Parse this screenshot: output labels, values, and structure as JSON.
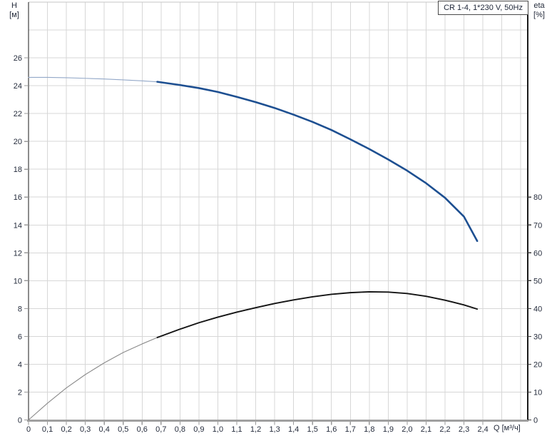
{
  "title_box": {
    "text": "CR 1-4, 1*230 V, 50Hz"
  },
  "corner_labels": {
    "left_axis_title": "H",
    "left_axis_unit": "[м]",
    "right_axis_title": "eta",
    "right_axis_unit": "[%]",
    "x_axis_title": "Q [м³/ч]"
  },
  "colors": {
    "background": "#ffffff",
    "grid": "#d7d7d7",
    "plot_border_top": "#c4c4c4",
    "axis_left": "#1a1a1a",
    "axis_right": "#1a1a1a",
    "axis_bottom": "#a0a0a0",
    "tick_left_bottom": "#9a9a9a",
    "tick_right": "#3a3a3a",
    "tick_text": "#252c3c",
    "head_curve_main": "#1d4f91",
    "head_curve_thin": "#93a8c8",
    "eta_curve_main": "#141414",
    "eta_curve_thin": "#8a8a8a"
  },
  "chart_data": {
    "type": "line",
    "title": "CR 1-4, 1*230 V, 50Hz",
    "grid": true,
    "legend_position": "none",
    "x_axis": {
      "label": "Q [м³/ч]",
      "min": 0,
      "max": 2.637,
      "gridline_step": 0.1,
      "decimal_separator": ",",
      "tick_values": [
        0,
        0.1,
        0.2,
        0.3,
        0.4,
        0.5,
        0.6,
        0.7,
        0.8,
        0.9,
        1.0,
        1.1,
        1.2,
        1.3,
        1.4,
        1.5,
        1.6,
        1.7,
        1.8,
        1.9,
        2.0,
        2.1,
        2.2,
        2.3,
        2.4
      ],
      "tick_labels": [
        "0",
        "0,1",
        "0,2",
        "0,3",
        "0,4",
        "0,5",
        "0,6",
        "0,7",
        "0,8",
        "0,9",
        "1,0",
        "1,1",
        "1,2",
        "1,3",
        "1,4",
        "1,5",
        "1,6",
        "1,7",
        "1,8",
        "1,9",
        "2,0",
        "2,1",
        "2,2",
        "2,3",
        "2,4"
      ]
    },
    "y_axis_left": {
      "label": "H [м]",
      "min": 0,
      "max": 30,
      "gridline_step": 2,
      "tick_values": [
        0,
        2,
        4,
        6,
        8,
        10,
        12,
        14,
        16,
        18,
        20,
        22,
        24,
        26
      ],
      "tick_labels": [
        "0",
        "2",
        "4",
        "6",
        "8",
        "10",
        "12",
        "14",
        "16",
        "18",
        "20",
        "22",
        "24",
        "26"
      ]
    },
    "y_axis_right": {
      "label": "eta [%]",
      "min": 0,
      "max": 150,
      "tick_values": [
        0,
        10,
        20,
        30,
        40,
        50,
        60,
        70,
        80
      ],
      "tick_labels": [
        "0",
        "10",
        "20",
        "30",
        "40",
        "50",
        "60",
        "70",
        "80"
      ]
    },
    "series": [
      {
        "name": "head-curve",
        "description": "H–Q pump head curve",
        "axis": "left",
        "thin_until_x": 0.68,
        "points": [
          [
            0.0,
            24.6
          ],
          [
            0.1,
            24.6
          ],
          [
            0.2,
            24.57
          ],
          [
            0.3,
            24.53
          ],
          [
            0.4,
            24.48
          ],
          [
            0.5,
            24.42
          ],
          [
            0.6,
            24.35
          ],
          [
            0.68,
            24.28
          ],
          [
            0.8,
            24.05
          ],
          [
            0.9,
            23.83
          ],
          [
            1.0,
            23.55
          ],
          [
            1.1,
            23.2
          ],
          [
            1.2,
            22.82
          ],
          [
            1.3,
            22.4
          ],
          [
            1.4,
            21.92
          ],
          [
            1.5,
            21.4
          ],
          [
            1.6,
            20.82
          ],
          [
            1.7,
            20.15
          ],
          [
            1.8,
            19.45
          ],
          [
            1.9,
            18.7
          ],
          [
            2.0,
            17.9
          ],
          [
            2.1,
            17.0
          ],
          [
            2.2,
            15.95
          ],
          [
            2.3,
            14.6
          ],
          [
            2.37,
            12.85
          ]
        ]
      },
      {
        "name": "efficiency-curve",
        "description": "eta–Q pump efficiency curve",
        "axis": "right",
        "thin_until_x": 0.68,
        "points": [
          [
            0.0,
            0
          ],
          [
            0.1,
            6.0
          ],
          [
            0.2,
            11.5
          ],
          [
            0.3,
            16.3
          ],
          [
            0.4,
            20.5
          ],
          [
            0.5,
            24.2
          ],
          [
            0.6,
            27.3
          ],
          [
            0.68,
            29.6
          ],
          [
            0.8,
            32.6
          ],
          [
            0.9,
            34.9
          ],
          [
            1.0,
            36.9
          ],
          [
            1.1,
            38.7
          ],
          [
            1.2,
            40.3
          ],
          [
            1.3,
            41.8
          ],
          [
            1.4,
            43.1
          ],
          [
            1.5,
            44.2
          ],
          [
            1.6,
            45.1
          ],
          [
            1.7,
            45.7
          ],
          [
            1.8,
            46.0
          ],
          [
            1.9,
            45.9
          ],
          [
            2.0,
            45.4
          ],
          [
            2.1,
            44.4
          ],
          [
            2.2,
            43.0
          ],
          [
            2.3,
            41.3
          ],
          [
            2.37,
            39.8
          ]
        ]
      }
    ]
  }
}
